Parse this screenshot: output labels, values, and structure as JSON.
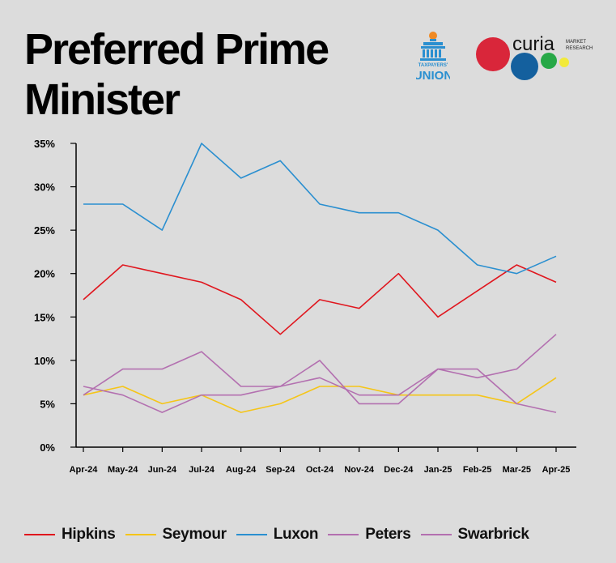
{
  "header": {
    "title": "Preferred Prime Minister",
    "logos": [
      {
        "name": "taxpayers-union-logo",
        "text": "TAXPAYERS' UNION"
      },
      {
        "name": "curia-logo",
        "text": "curia",
        "subtext": "MARKET RESEARCH"
      }
    ]
  },
  "chart_data": {
    "type": "line",
    "title": "Preferred Prime Minister",
    "categories": [
      "Apr-24",
      "May-24",
      "Jun-24",
      "Jul-24",
      "Aug-24",
      "Sep-24",
      "Oct-24",
      "Nov-24",
      "Dec-24",
      "Jan-25",
      "Feb-25",
      "Mar-25",
      "Apr-25"
    ],
    "ylim": [
      0,
      35
    ],
    "yticks": [
      0,
      5,
      10,
      15,
      20,
      25,
      30,
      35
    ],
    "ytick_format": "percent",
    "grid": false,
    "legend": "bottom",
    "series": [
      {
        "name": "Hipkins",
        "color": "#e0161e",
        "values": [
          17,
          21,
          20,
          19,
          17,
          13,
          17,
          16,
          20,
          15,
          18,
          21,
          19
        ]
      },
      {
        "name": "Seymour",
        "color": "#f5c518",
        "values": [
          6,
          7,
          5,
          6,
          4,
          5,
          7,
          7,
          6,
          6,
          6,
          5,
          8
        ]
      },
      {
        "name": "Luxon",
        "color": "#2a8fd0",
        "values": [
          28,
          28,
          25,
          35,
          31,
          33,
          28,
          27,
          27,
          25,
          21,
          20,
          22
        ]
      },
      {
        "name": "Peters",
        "color": "#b370b0",
        "values": [
          6,
          9,
          9,
          11,
          7,
          7,
          10,
          5,
          5,
          9,
          9,
          5,
          4
        ]
      },
      {
        "name": "Swarbrick",
        "color": "#b370b0",
        "values": [
          7,
          6,
          4,
          6,
          6,
          7,
          8,
          6,
          6,
          9,
          8,
          9,
          13
        ]
      }
    ]
  }
}
